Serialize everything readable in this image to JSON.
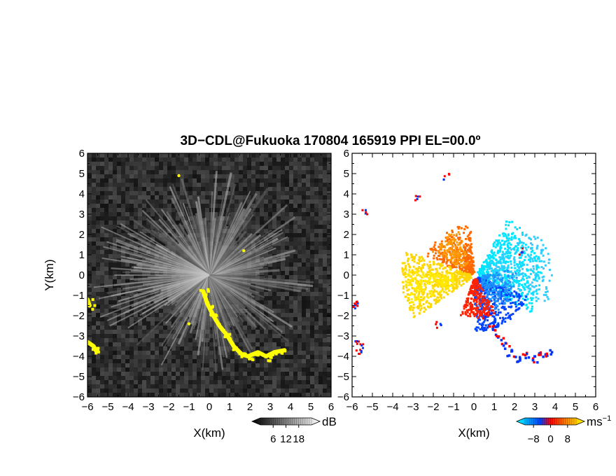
{
  "title": "3D−CDL@Fukuoka 170804 165919 PPI EL=00.0º",
  "panels": [
    {
      "id": "reflectivity",
      "xlabel": "X(km)",
      "ylabel": "Y(km)",
      "colorbar": {
        "unit": "dB",
        "ticks": [
          "6",
          "12",
          "18"
        ],
        "range": [
          0,
          24
        ],
        "colors": [
          "#000000",
          "#ffffff"
        ]
      },
      "highlight_color": "#ffff00",
      "background_color": "#2a2a2a"
    },
    {
      "id": "velocity",
      "xlabel": "X(km)",
      "ylabel": "",
      "colorbar": {
        "unit": "ms",
        "unit_exponent": "−1",
        "ticks": [
          "−8",
          "0",
          "8"
        ],
        "range": [
          -12,
          12
        ],
        "colors": [
          "#00ffff",
          "#0040ff",
          "#ff0000",
          "#ff8c00",
          "#ffff00"
        ]
      }
    }
  ],
  "chart_data": [
    {
      "type": "heatmap",
      "title": "3D−CDL@Fukuoka 170804 165919 PPI EL=00.0º",
      "xlabel": "X(km)",
      "ylabel": "Y(km)",
      "xlim": [
        -6,
        6
      ],
      "ylim": [
        -6,
        6
      ],
      "xticks": [
        "−6",
        "−5",
        "−4",
        "−3",
        "−2",
        "−1",
        "0",
        "1",
        "2",
        "3",
        "4",
        "5",
        "6"
      ],
      "yticks": [
        "−6",
        "−5",
        "−4",
        "−3",
        "−2",
        "−1",
        "0",
        "1",
        "2",
        "3",
        "4",
        "5",
        "6"
      ],
      "colorbar_unit": "dB",
      "colorbar_ticks": [
        6,
        12,
        18
      ],
      "highlight_features": [
        {
          "name": "yellow echo band",
          "points": [
            [
              -0.3,
              -0.8
            ],
            [
              -0.1,
              -1.4
            ],
            [
              0.2,
              -2.0
            ],
            [
              0.5,
              -2.5
            ],
            [
              0.9,
              -3.0
            ],
            [
              1.2,
              -3.5
            ],
            [
              1.6,
              -3.9
            ],
            [
              1.9,
              -4.0
            ],
            [
              2.4,
              -3.8
            ],
            [
              2.8,
              -4.0
            ],
            [
              3.2,
              -3.8
            ],
            [
              3.7,
              -3.7
            ]
          ]
        },
        {
          "name": "left edge echo",
          "points": [
            [
              -6.0,
              -1.2
            ],
            [
              -5.9,
              -1.5
            ]
          ]
        },
        {
          "name": "left lower echo",
          "points": [
            [
              -6.0,
              -3.3
            ],
            [
              -5.7,
              -3.5
            ],
            [
              -5.6,
              -3.7
            ]
          ]
        },
        {
          "name": "small echo",
          "points": [
            [
              -1.5,
              4.9
            ]
          ]
        },
        {
          "name": "small echo",
          "points": [
            [
              1.7,
              1.2
            ]
          ]
        },
        {
          "name": "small echo",
          "points": [
            [
              -1.0,
              -2.4
            ]
          ]
        }
      ]
    },
    {
      "type": "heatmap",
      "xlabel": "X(km)",
      "xlim": [
        -6,
        6
      ],
      "ylim": [
        -6,
        6
      ],
      "xticks": [
        "−6",
        "−5",
        "−4",
        "−3",
        "−2",
        "−1",
        "0",
        "1",
        "2",
        "3",
        "4",
        "5",
        "6"
      ],
      "yticks": [
        "−6",
        "−5",
        "−4",
        "−3",
        "−2",
        "−1",
        "0",
        "1",
        "2",
        "3",
        "4",
        "5",
        "6"
      ],
      "colorbar_unit": "ms−1",
      "colorbar_ticks": [
        -8,
        0,
        8
      ],
      "regions": [
        {
          "name": "cyan approaching region",
          "velocity": -10,
          "center": [
            2.0,
            0.2
          ]
        },
        {
          "name": "blue region",
          "velocity": -4,
          "center": [
            1.2,
            -1.0
          ]
        },
        {
          "name": "orange region north-west",
          "velocity": 6,
          "center": [
            -1.0,
            1.3
          ]
        },
        {
          "name": "yellow region west",
          "velocity": 10,
          "center": [
            -2.5,
            -0.3
          ]
        },
        {
          "name": "red-blue band south-east",
          "velocity": 3,
          "center": [
            1.5,
            -3.0
          ]
        }
      ]
    }
  ]
}
